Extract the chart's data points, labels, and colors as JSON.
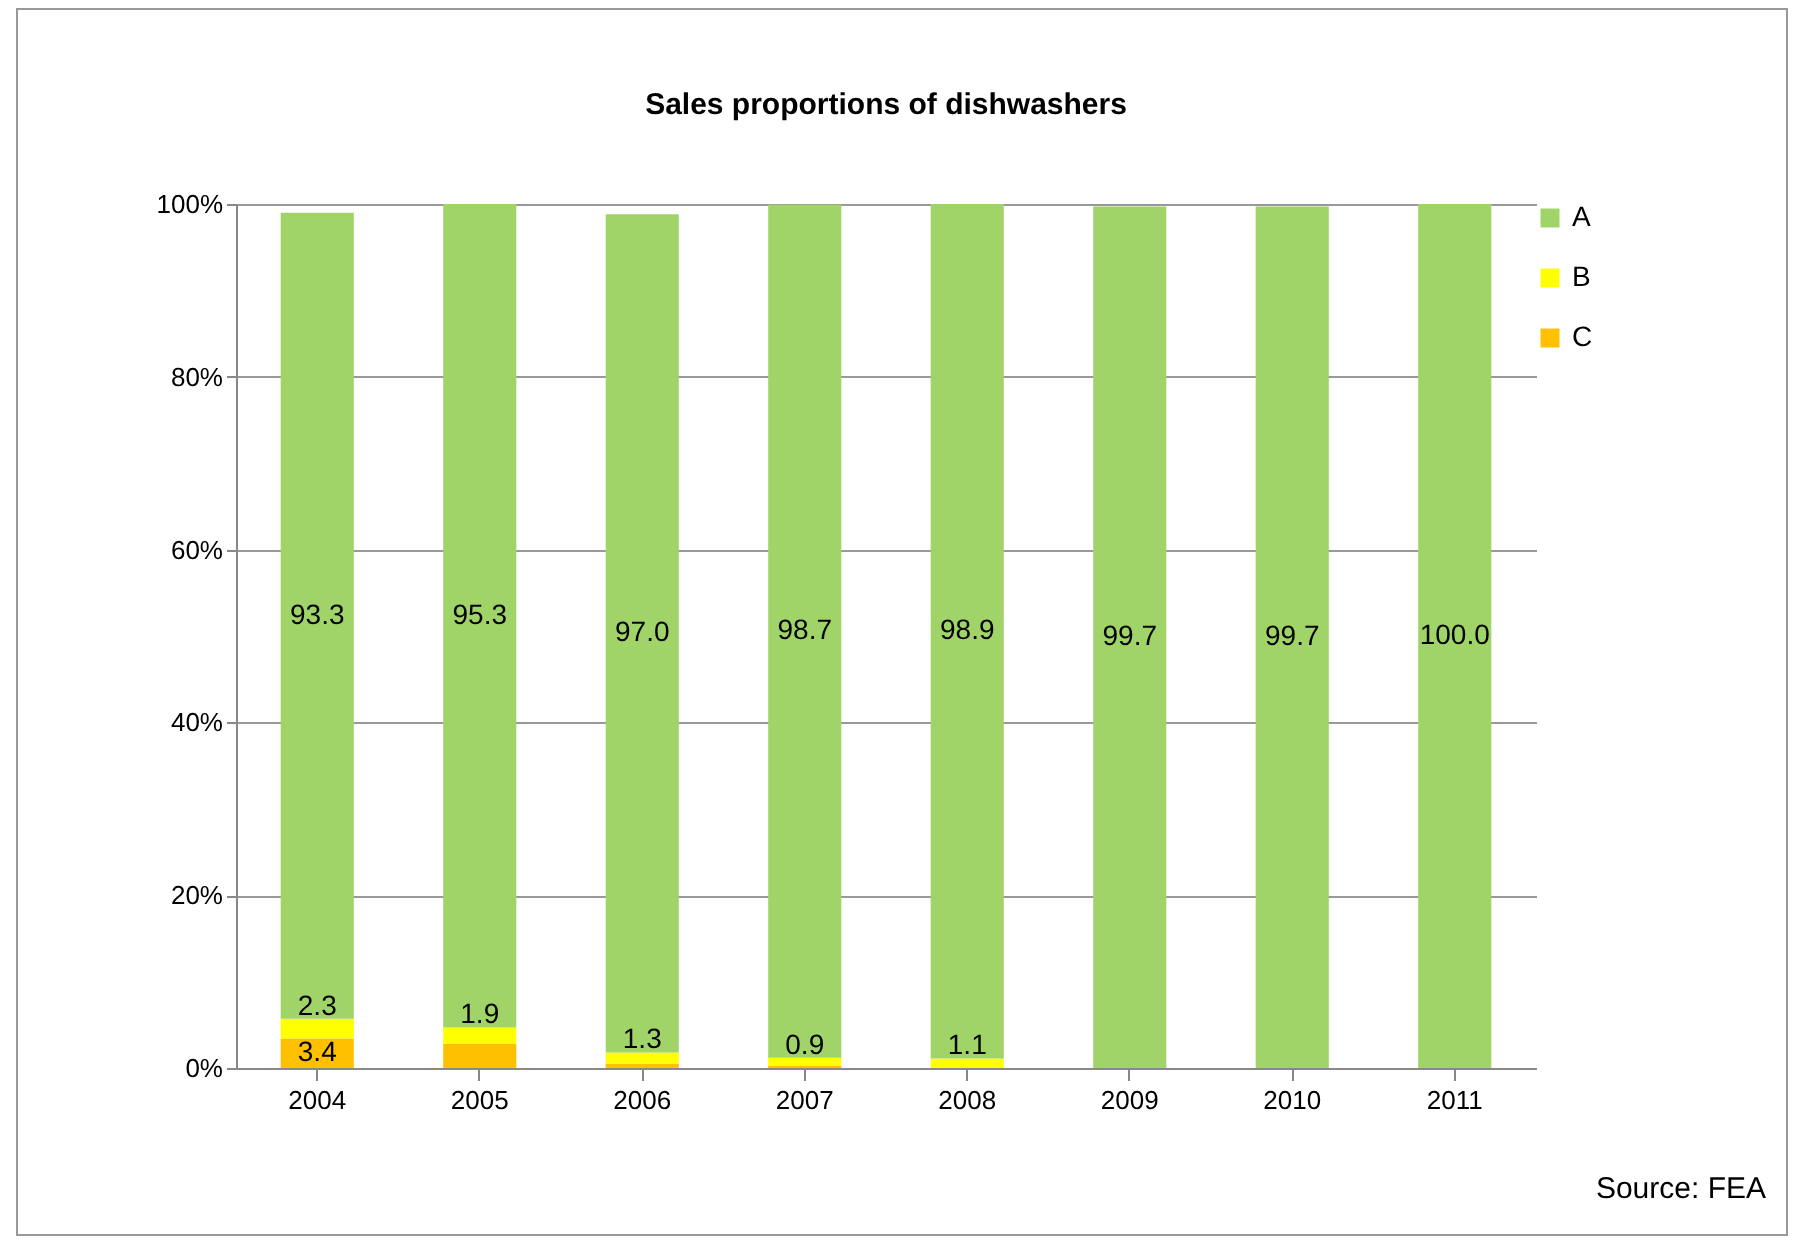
{
  "chart_data": {
    "type": "bar",
    "title": "Sales proportions of dishwashers",
    "categories": [
      "2004",
      "2005",
      "2006",
      "2007",
      "2008",
      "2009",
      "2010",
      "2011"
    ],
    "stacked": true,
    "series": [
      {
        "name": "C",
        "color": "#ffc000",
        "values": [
          3.4,
          2.8,
          0.5,
          0.3,
          null,
          null,
          null,
          null
        ],
        "value_labels": [
          "3.4",
          null,
          null,
          null,
          null,
          null,
          null,
          null
        ]
      },
      {
        "name": "B",
        "color": "#ffff00",
        "values": [
          2.3,
          1.9,
          1.3,
          0.9,
          1.1,
          null,
          null,
          null
        ],
        "value_labels": [
          "2.3",
          "1.9",
          "1.3",
          "0.9",
          "1.1",
          null,
          null,
          null
        ]
      },
      {
        "name": "A",
        "color": "#a0d468",
        "values": [
          93.3,
          95.3,
          97.0,
          98.7,
          98.9,
          99.7,
          99.7,
          100.0
        ],
        "value_labels": [
          "93.3",
          "95.3",
          "97.0",
          "98.7",
          "98.9",
          "99.7",
          "99.7",
          "100.0"
        ]
      }
    ],
    "ylim": [
      0,
      100
    ],
    "yticks": [
      {
        "value": 0,
        "label": "0%"
      },
      {
        "value": 20,
        "label": "20%"
      },
      {
        "value": 40,
        "label": "40%"
      },
      {
        "value": 60,
        "label": "60%"
      },
      {
        "value": 80,
        "label": "80%"
      },
      {
        "value": 100,
        "label": "100%"
      }
    ],
    "grid": "y",
    "legend": "right",
    "annotations": [
      "Source: FEA"
    ]
  }
}
